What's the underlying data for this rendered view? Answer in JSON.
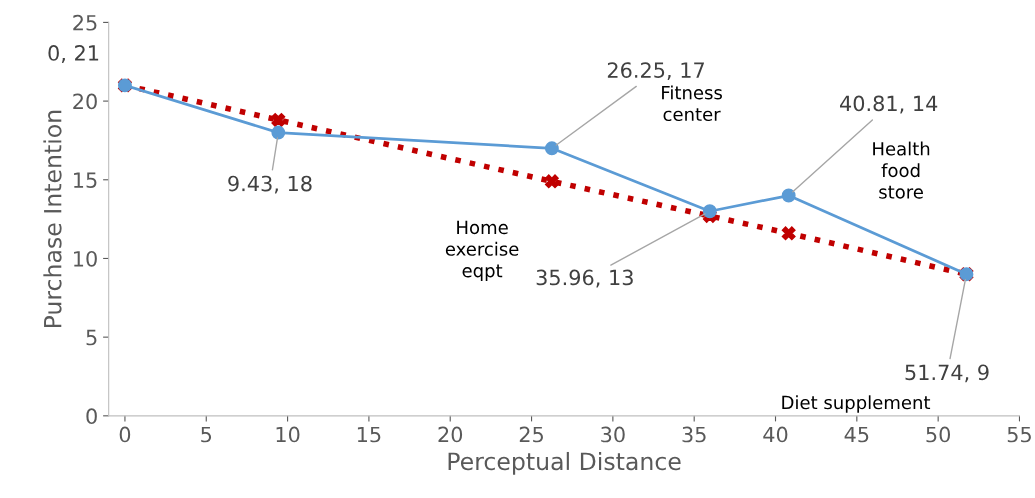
{
  "chart_data": {
    "type": "line",
    "xlabel": "Perceptual Distance",
    "ylabel": "Purchase Intention",
    "x": [
      0,
      9.43,
      26.25,
      35.96,
      40.81,
      51.74
    ],
    "series": [
      {
        "color": "#5b9bd5",
        "values": [
          21,
          18,
          17,
          13,
          14,
          9
        ],
        "marker": "circle",
        "line_style": "solid"
      },
      {
        "color": "#c00000",
        "values": [
          21,
          18.8,
          14.9,
          12.7,
          11.6,
          9
        ],
        "marker": "cross",
        "line_style": "dotted"
      }
    ],
    "xlim": [
      -1,
      55
    ],
    "xticks": [
      0,
      5,
      10,
      15,
      20,
      25,
      30,
      35,
      40,
      45,
      50,
      55
    ],
    "ylim": [
      0,
      25
    ],
    "yticks": [
      0,
      5,
      10,
      15,
      20,
      25
    ],
    "grid": false,
    "legend": false,
    "annotations": [
      {
        "text": "0, 21",
        "x": 0,
        "y": 21
      },
      {
        "text": "9.43, 18",
        "x": 9.43,
        "y": 18
      },
      {
        "text": "26.25, 17",
        "x": 26.25,
        "y": 17
      },
      {
        "text": "35.96, 13",
        "x": 35.96,
        "y": 13
      },
      {
        "text": "40.81, 14",
        "x": 40.81,
        "y": 14
      },
      {
        "text": "51.74, 9",
        "x": 51.74,
        "y": 9
      },
      "Fitness\ncenter",
      "Health\nfood\nstore",
      "Home\nexercise\neqpt",
      "Diet supplement"
    ]
  }
}
